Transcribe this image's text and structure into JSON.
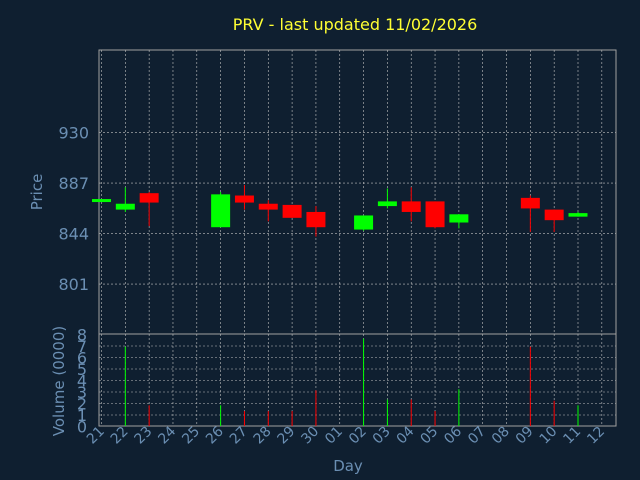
{
  "chart_data": {
    "type": "candlestick",
    "title": "PRV - last updated 11/02/2026",
    "price_panel": {
      "ylabel": "Price",
      "ylim": [
        758,
        1000
      ],
      "yticks": [
        801,
        844,
        887,
        930
      ]
    },
    "volume_panel": {
      "ylabel": "Volume (0000)",
      "ylim": [
        0,
        8
      ],
      "yticks": [
        0,
        1,
        2,
        3,
        4,
        5,
        6,
        7,
        8
      ]
    },
    "xlabel": "Day",
    "x_tick_labels": [
      "21",
      "22",
      "23",
      "24",
      "25",
      "26",
      "27",
      "28",
      "29",
      "30",
      "01",
      "02",
      "03",
      "04",
      "05",
      "06",
      "07",
      "08",
      "09",
      "10",
      "11",
      "12"
    ],
    "candles": [
      {
        "day": "21",
        "open": 873,
        "high": 873,
        "low": 873,
        "close": 873,
        "volume": 0
      },
      {
        "day": "22",
        "open": 864,
        "high": 883,
        "low": 862,
        "close": 869,
        "volume": 6.9
      },
      {
        "day": "23",
        "open": 878,
        "high": 879,
        "low": 850,
        "close": 870,
        "volume": 1.8
      },
      {
        "day": "26",
        "open": 849,
        "high": 879,
        "low": 849,
        "close": 877,
        "volume": 1.8
      },
      {
        "day": "27",
        "open": 876,
        "high": 885,
        "low": 864,
        "close": 870,
        "volume": 1.3
      },
      {
        "day": "28",
        "open": 869,
        "high": 872,
        "low": 854,
        "close": 864,
        "volume": 1.3
      },
      {
        "day": "29",
        "open": 868,
        "high": 868,
        "low": 857,
        "close": 857,
        "volume": 1.3
      },
      {
        "day": "30",
        "open": 862,
        "high": 867,
        "low": 841,
        "close": 849,
        "volume": 3.1
      },
      {
        "day": "02",
        "open": 847,
        "high": 859,
        "low": 846,
        "close": 859,
        "volume": 7.6
      },
      {
        "day": "03",
        "open": 867,
        "high": 882,
        "low": 865,
        "close": 871,
        "volume": 2.3
      },
      {
        "day": "04",
        "open": 871,
        "high": 883,
        "low": 854,
        "close": 862,
        "volume": 2.3
      },
      {
        "day": "05",
        "open": 871,
        "high": 871,
        "low": 848,
        "close": 849,
        "volume": 1.3
      },
      {
        "day": "06",
        "open": 853,
        "high": 860,
        "low": 848,
        "close": 860,
        "volume": 3.2
      },
      {
        "day": "09",
        "open": 874,
        "high": 876,
        "low": 845,
        "close": 865,
        "volume": 6.9
      },
      {
        "day": "10",
        "open": 864,
        "high": 864,
        "low": 845,
        "close": 855,
        "volume": 2.2
      },
      {
        "day": "11",
        "open": 858,
        "high": 862,
        "low": 858,
        "close": 861,
        "volume": 1.8
      }
    ],
    "colors": {
      "background": "#0f1f30",
      "up": "#00ff00",
      "down": "#ff0000",
      "grid": "#c0c0c0",
      "axis_text": "#6b8fb3",
      "title": "#ffff33"
    },
    "grid": true
  }
}
